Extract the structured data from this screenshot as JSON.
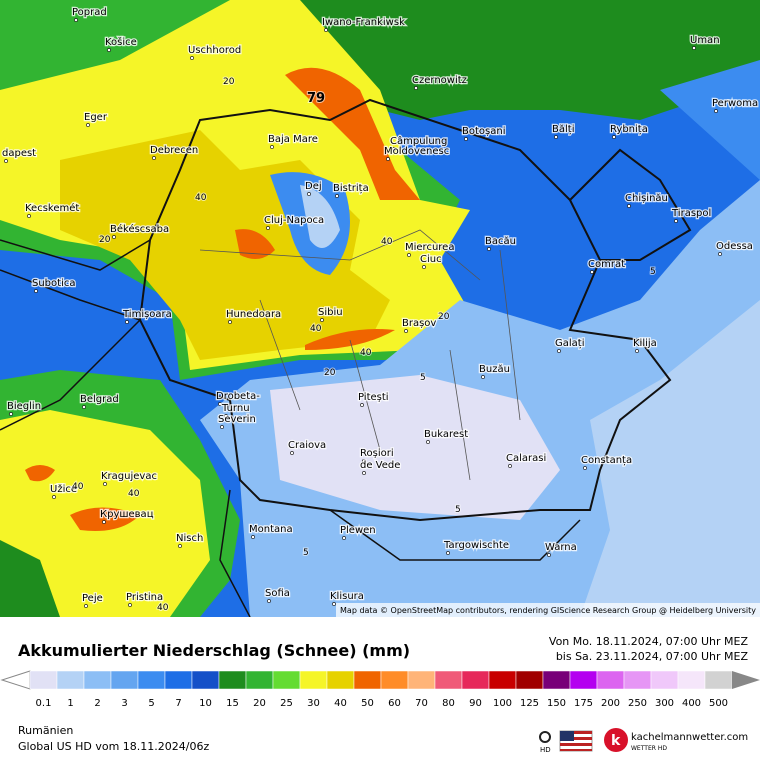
{
  "map": {
    "places": [
      "Poprad",
      "Košice",
      "Uschhorod",
      "Iwano-Frankiwsk",
      "Uman",
      "Czernowitz",
      "Eger",
      "Perwoma",
      "dapest",
      "Debrecen",
      "Baja Mare",
      "Câmpulung",
      "Moldovenesc",
      "Botoșani",
      "Bălți",
      "Rybnița",
      "Chișinău",
      "Tiraspol",
      "Odessa",
      "Dej",
      "Bistrița",
      "Cluj-Napoca",
      "Kecskemét",
      "Békéscsaba",
      "Bacău",
      "Miercurea",
      "Ciuc",
      "Subotica",
      "Comrat",
      "Timișoara",
      "Hunedoara",
      "Sibiu",
      "Brașov",
      "Galați",
      "Kilija",
      "Buzău",
      "Drobeta-",
      "Turnu",
      "Severin",
      "Belgrad",
      "Bieglin",
      "Pitești",
      "Craiova",
      "Bukarest",
      "Roșiori",
      "de Vede",
      "Calarasi",
      "Constanța",
      "Kragujevac",
      "Užice",
      "Крушевац",
      "Nisch",
      "Montana",
      "Plewen",
      "Targowischte",
      "Warna",
      "Sofia",
      "Pristina",
      "Klisura",
      "Peje"
    ],
    "contour_labels": [
      79,
      20,
      40,
      20,
      40,
      20,
      40,
      40,
      20,
      5,
      5,
      5,
      5,
      40,
      40,
      40
    ],
    "attribution": "Map data © OpenStreetMap contributors, rendering GIScience Research Group @ Heidelberg University"
  },
  "legend": {
    "title": "Akkumulierter Niederschlag (Schnee) (mm)",
    "period_from": "Von Mo. 18.11.2024, 07:00 Uhr MEZ",
    "period_to": "bis Sa. 23.11.2024, 07:00 Uhr MEZ",
    "bins": [
      0.1,
      1,
      2,
      3,
      5,
      7,
      10,
      15,
      20,
      25,
      30,
      40,
      50,
      60,
      70,
      80,
      90,
      100,
      125,
      150,
      175,
      200,
      250,
      300,
      400,
      500
    ],
    "colors": [
      "#e1e1f5",
      "#b4d2f5",
      "#8cbef5",
      "#64a5f0",
      "#3c8cf0",
      "#1e6ee6",
      "#1450c8",
      "#1e8c1e",
      "#32b432",
      "#64dc32",
      "#f5f528",
      "#e6d200",
      "#f06400",
      "#ff8c28",
      "#ffb478",
      "#f05a78",
      "#e6285a",
      "#c80000",
      "#a00000",
      "#780078",
      "#b400f0",
      "#dc64f0",
      "#e696f5",
      "#f0c8fa",
      "#f5e6fa",
      "#d2d2d2"
    ]
  },
  "footer": {
    "region": "Rumänien",
    "model": "Global US HD vom  18.11.2024/06z",
    "hd": "HD",
    "brand": "kachelmannwetter.com",
    "brand_sub": "WETTER HD"
  }
}
